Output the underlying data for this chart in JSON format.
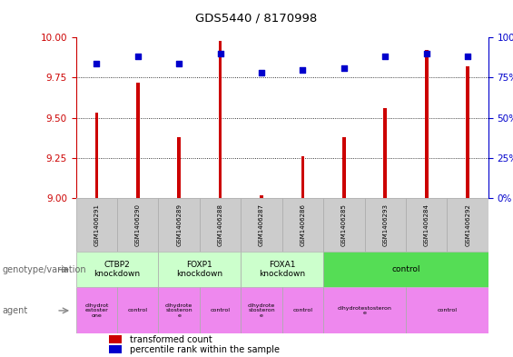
{
  "title": "GDS5440 / 8170998",
  "samples": [
    "GSM1406291",
    "GSM1406290",
    "GSM1406289",
    "GSM1406288",
    "GSM1406287",
    "GSM1406286",
    "GSM1406285",
    "GSM1406293",
    "GSM1406284",
    "GSM1406292"
  ],
  "transformed_count": [
    9.53,
    9.72,
    9.38,
    9.98,
    9.02,
    9.26,
    9.38,
    9.56,
    9.92,
    9.82
  ],
  "percentile_rank": [
    84,
    88,
    84,
    90,
    78,
    80,
    81,
    88,
    90,
    88
  ],
  "ylim_left": [
    9.0,
    10.0
  ],
  "ylim_right": [
    0,
    100
  ],
  "yticks_left": [
    9.0,
    9.25,
    9.5,
    9.75,
    10.0
  ],
  "yticks_right": [
    0,
    25,
    50,
    75,
    100
  ],
  "left_axis_color": "#cc0000",
  "right_axis_color": "#0000cc",
  "bar_color": "#cc0000",
  "dot_color": "#0000cc",
  "grid_color": "#000000",
  "genotype_groups": [
    {
      "label": "CTBP2\nknockdown",
      "start": 0,
      "end": 2,
      "color": "#ccffcc"
    },
    {
      "label": "FOXP1\nknockdown",
      "start": 2,
      "end": 4,
      "color": "#ccffcc"
    },
    {
      "label": "FOXA1\nknockdown",
      "start": 4,
      "end": 6,
      "color": "#ccffcc"
    },
    {
      "label": "control",
      "start": 6,
      "end": 10,
      "color": "#55dd55"
    }
  ],
  "agent_groups": [
    {
      "label": "dihydrot\nestoster\none",
      "start": 0,
      "end": 1,
      "color": "#ee88ee"
    },
    {
      "label": "control",
      "start": 1,
      "end": 2,
      "color": "#ee88ee"
    },
    {
      "label": "dihydrote\nstosteron\ne",
      "start": 2,
      "end": 3,
      "color": "#ee88ee"
    },
    {
      "label": "control",
      "start": 3,
      "end": 4,
      "color": "#ee88ee"
    },
    {
      "label": "dihydrote\nstosteron\ne",
      "start": 4,
      "end": 5,
      "color": "#ee88ee"
    },
    {
      "label": "control",
      "start": 5,
      "end": 6,
      "color": "#ee88ee"
    },
    {
      "label": "dihydrotestosteron\ne",
      "start": 6,
      "end": 8,
      "color": "#ee88ee"
    },
    {
      "label": "control",
      "start": 8,
      "end": 10,
      "color": "#ee88ee"
    }
  ],
  "legend_bar_label": "transformed count",
  "legend_dot_label": "percentile rank within the sample",
  "genotype_label": "genotype/variation",
  "agent_label": "agent",
  "sample_bg_color": "#cccccc",
  "sample_border_color": "#aaaaaa"
}
